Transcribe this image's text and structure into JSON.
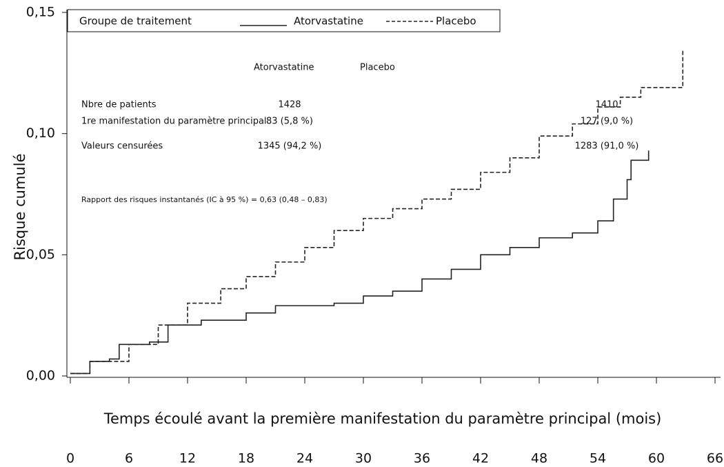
{
  "chart_data": {
    "type": "step",
    "x_label": "Temps écoulé avant la première manifestation du paramètre principal (mois)",
    "y_label": "Risque cumulé",
    "legend_title": "Groupe de traitement",
    "xlim": [
      0,
      66
    ],
    "xticks": [
      0,
      6,
      12,
      18,
      24,
      30,
      36,
      42,
      48,
      54,
      60,
      66
    ],
    "ylim": [
      0,
      0.15
    ],
    "yticks": [
      {
        "value": 0,
        "label": "0,00"
      },
      {
        "value": 0.05,
        "label": "0,05"
      },
      {
        "value": 0.1,
        "label": "0,10"
      },
      {
        "value": 0.15,
        "label": "0,15"
      }
    ],
    "series": [
      {
        "name": "Atorvastatine",
        "color": "#222222",
        "dashed": false,
        "x": [
          0,
          2,
          4,
          5,
          8.1,
          10,
          13.4,
          18,
          21,
          24,
          27,
          30,
          33,
          36,
          39,
          42,
          45,
          48,
          51.4,
          54,
          55.6,
          57,
          57.4,
          59.2
        ],
        "values": [
          0.001,
          0.006,
          0.007,
          0.013,
          0.014,
          0.021,
          0.023,
          0.026,
          0.029,
          0.029,
          0.03,
          0.033,
          0.035,
          0.04,
          0.044,
          0.05,
          0.053,
          0.057,
          0.059,
          0.064,
          0.073,
          0.081,
          0.089,
          0.093
        ]
      },
      {
        "name": "Placebo",
        "color": "#222222",
        "dashed": true,
        "x": [
          0,
          2,
          6,
          9,
          12,
          15.4,
          18,
          21,
          24,
          27,
          30,
          33,
          36,
          39,
          42,
          45,
          48,
          51.4,
          54,
          56.3,
          58.4,
          62.7
        ],
        "values": [
          0.001,
          0.006,
          0.013,
          0.021,
          0.03,
          0.036,
          0.041,
          0.047,
          0.053,
          0.06,
          0.065,
          0.069,
          0.073,
          0.077,
          0.084,
          0.09,
          0.099,
          0.104,
          0.111,
          0.115,
          0.119,
          0.135
        ]
      }
    ],
    "table": {
      "columns": [
        "Atorvastatine",
        "Placebo"
      ],
      "rows": [
        {
          "label": "Nbre de patients",
          "values": [
            "1428",
            "1410"
          ]
        },
        {
          "label": "1re manifestation du paramètre principal",
          "values": [
            "83 (5,8 %)",
            "127 (9,0 %)"
          ]
        },
        {
          "label": "Valeurs censurées",
          "values": [
            "1345 (94,2 %)",
            "1283 (91,0 %)"
          ]
        }
      ]
    },
    "annotation": "Rapport  des risques instantanés (IC à 95 %) = 0,63 (0,48 – 0,83)"
  }
}
